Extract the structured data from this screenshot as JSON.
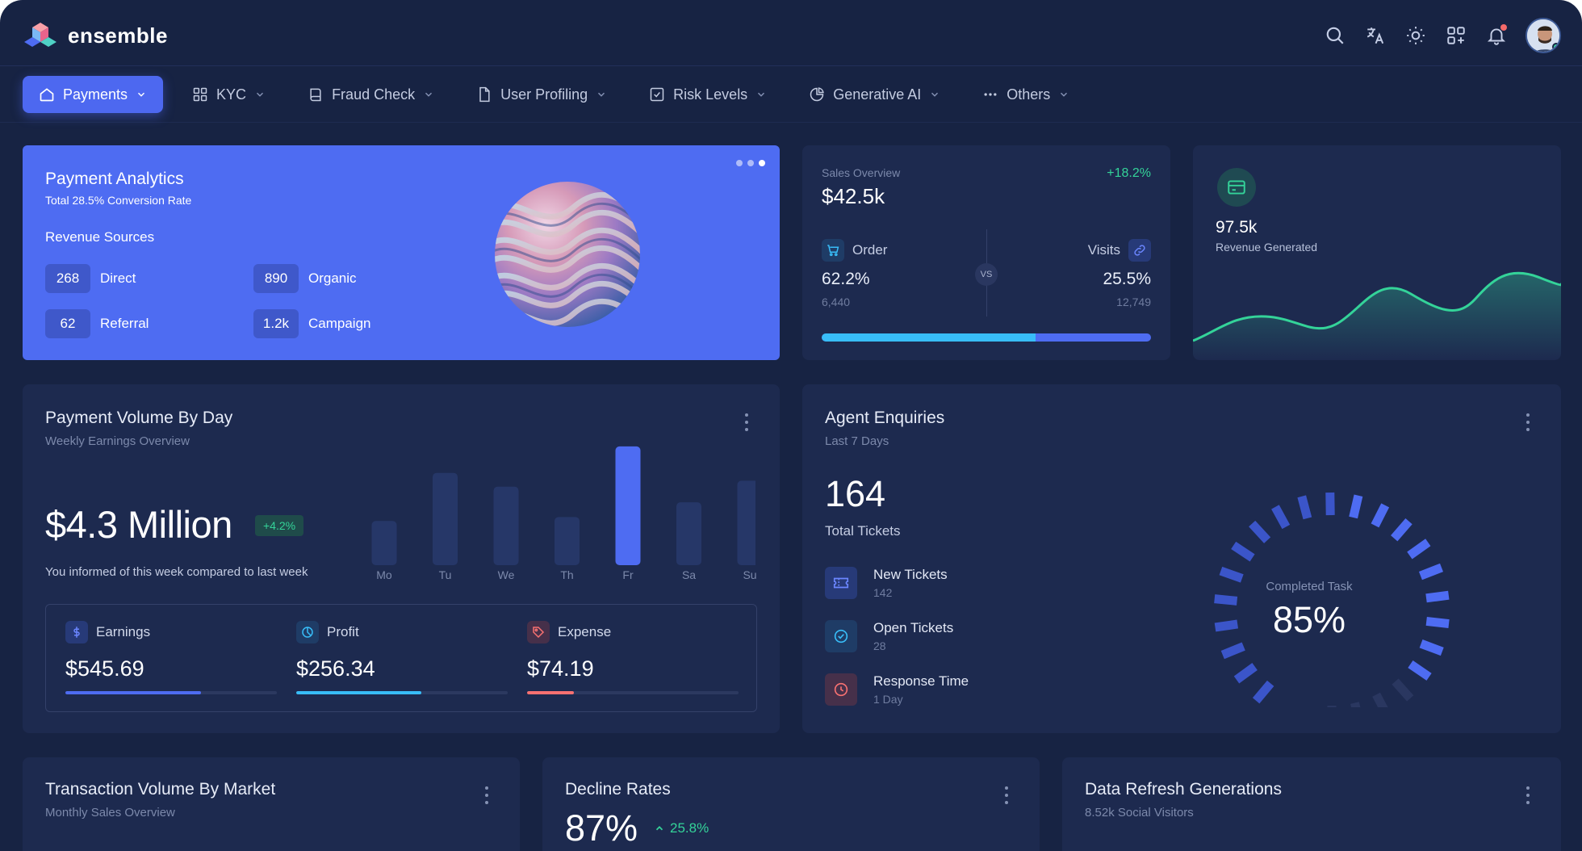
{
  "app": {
    "name": "ensemble"
  },
  "nav": {
    "items": [
      {
        "label": "Payments",
        "icon": "home-icon",
        "active": true
      },
      {
        "label": "KYC",
        "icon": "grid-icon",
        "active": false
      },
      {
        "label": "Fraud Check",
        "icon": "book-icon",
        "active": false
      },
      {
        "label": "User Profiling",
        "icon": "file-icon",
        "active": false
      },
      {
        "label": "Risk Levels",
        "icon": "check-square-icon",
        "active": false
      },
      {
        "label": "Generative AI",
        "icon": "pie-chart-icon",
        "active": false
      },
      {
        "label": "Others",
        "icon": "more-horizontal-icon",
        "active": false
      }
    ]
  },
  "topbar_icons": [
    "search-icon",
    "translate-icon",
    "sun-icon",
    "apps-icon",
    "bell-icon",
    "avatar"
  ],
  "payment_analytics": {
    "title": "Payment Analytics",
    "subtitle": "Total 28.5% Conversion Rate",
    "revenue_label": "Revenue Sources",
    "sources": [
      {
        "value": "268",
        "label": "Direct"
      },
      {
        "value": "890",
        "label": "Organic"
      },
      {
        "value": "62",
        "label": "Referral"
      },
      {
        "value": "1.2k",
        "label": "Campaign"
      }
    ]
  },
  "sales_overview": {
    "label": "Sales Overview",
    "value": "$42.5k",
    "change": "+18.2%",
    "order_label": "Order",
    "order_pct": "62.2%",
    "order_count": "6,440",
    "vs": "VS",
    "visits_label": "Visits",
    "visits_pct": "25.5%",
    "visits_count": "12,749",
    "order_share": 0.65
  },
  "revenue_generated": {
    "value": "97.5k",
    "label": "Revenue Generated"
  },
  "payment_volume": {
    "title": "Payment Volume By Day",
    "subtitle": "Weekly Earnings Overview",
    "amount": "$4.3 Million",
    "badge": "+4.2%",
    "note": "You informed of this week compared to last week",
    "stats": [
      {
        "label": "Earnings",
        "value": "$545.69",
        "icon": "dollar-icon",
        "color": "#4e6cf2",
        "progress": 0.64
      },
      {
        "label": "Profit",
        "value": "$256.34",
        "icon": "pie-chart-icon",
        "color": "#38bdf8",
        "progress": 0.59
      },
      {
        "label": "Expense",
        "value": "$74.19",
        "icon": "tag-icon",
        "color": "#f87171",
        "progress": 0.22
      }
    ]
  },
  "chart_data": {
    "type": "bar",
    "categories": [
      "Mo",
      "Tu",
      "We",
      "Th",
      "Fr",
      "Sa",
      "Su"
    ],
    "values": [
      45,
      94,
      80,
      49,
      121,
      64,
      86
    ],
    "highlight": "Fr",
    "colors": {
      "bar": "#263768",
      "highlight": "#4e6cf2"
    }
  },
  "agent_enquiries": {
    "title": "Agent Enquiries",
    "subtitle": "Last 7 Days",
    "total": "164",
    "total_label": "Total Tickets",
    "rows": [
      {
        "title": "New Tickets",
        "sub": "142",
        "icon": "ticket-icon"
      },
      {
        "title": "Open Tickets",
        "sub": "28",
        "icon": "check-circle-icon"
      },
      {
        "title": "Response Time",
        "sub": "1 Day",
        "icon": "clock-icon"
      }
    ],
    "gauge_label": "Completed Task",
    "gauge_value": "85%",
    "gauge_fraction": 0.85
  },
  "bottom": {
    "transaction": {
      "title": "Transaction Volume By Market",
      "subtitle": "Monthly Sales Overview"
    },
    "decline": {
      "title": "Decline Rates",
      "value": "87%",
      "change": "25.8%"
    },
    "refresh": {
      "title": "Data Refresh Generations",
      "subtitle": "8.52k Social Visitors"
    }
  }
}
